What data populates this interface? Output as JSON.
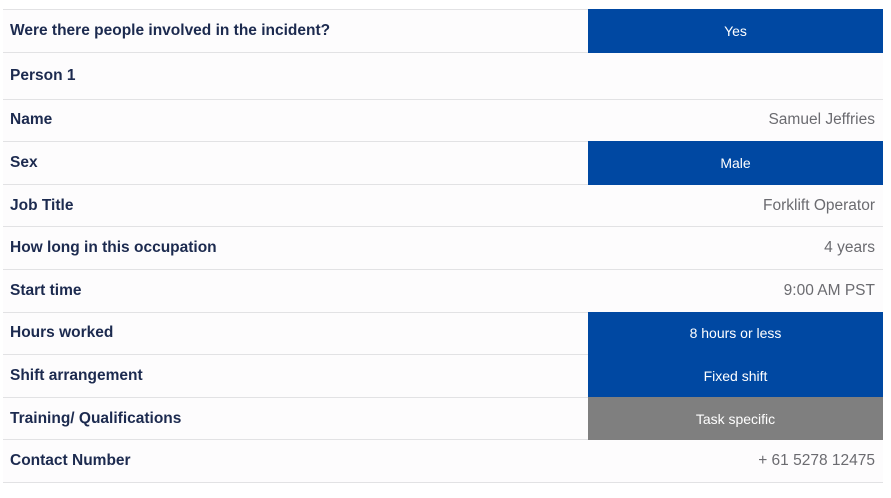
{
  "rows": [
    {
      "label": "Were there people involved in the incident?",
      "value": "Yes",
      "type": "chip",
      "color": "#0048a2"
    },
    {
      "label": "Person 1",
      "value": "",
      "type": "header"
    },
    {
      "label": "Name",
      "value": "Samuel Jeffries",
      "type": "text"
    },
    {
      "label": "Sex",
      "value": "Male",
      "type": "chip",
      "color": "#0048a2"
    },
    {
      "label": "Job Title",
      "value": "Forklift Operator",
      "type": "text"
    },
    {
      "label": "How long in this occupation",
      "value": "4 years",
      "type": "text"
    },
    {
      "label": "Start time",
      "value": "9:00 AM PST",
      "type": "text"
    },
    {
      "label": "Hours worked",
      "value": "8 hours or less",
      "type": "chip",
      "color": "#0048a2"
    },
    {
      "label": "Shift arrangement",
      "value": "Fixed shift",
      "type": "chip",
      "color": "#0048a2"
    },
    {
      "label": "Training/ Qualifications",
      "value": "Task specific",
      "type": "chip",
      "color": "#7f7f7f"
    },
    {
      "label": "Contact Number",
      "value": "+ 61 5278 12475",
      "type": "text"
    }
  ]
}
